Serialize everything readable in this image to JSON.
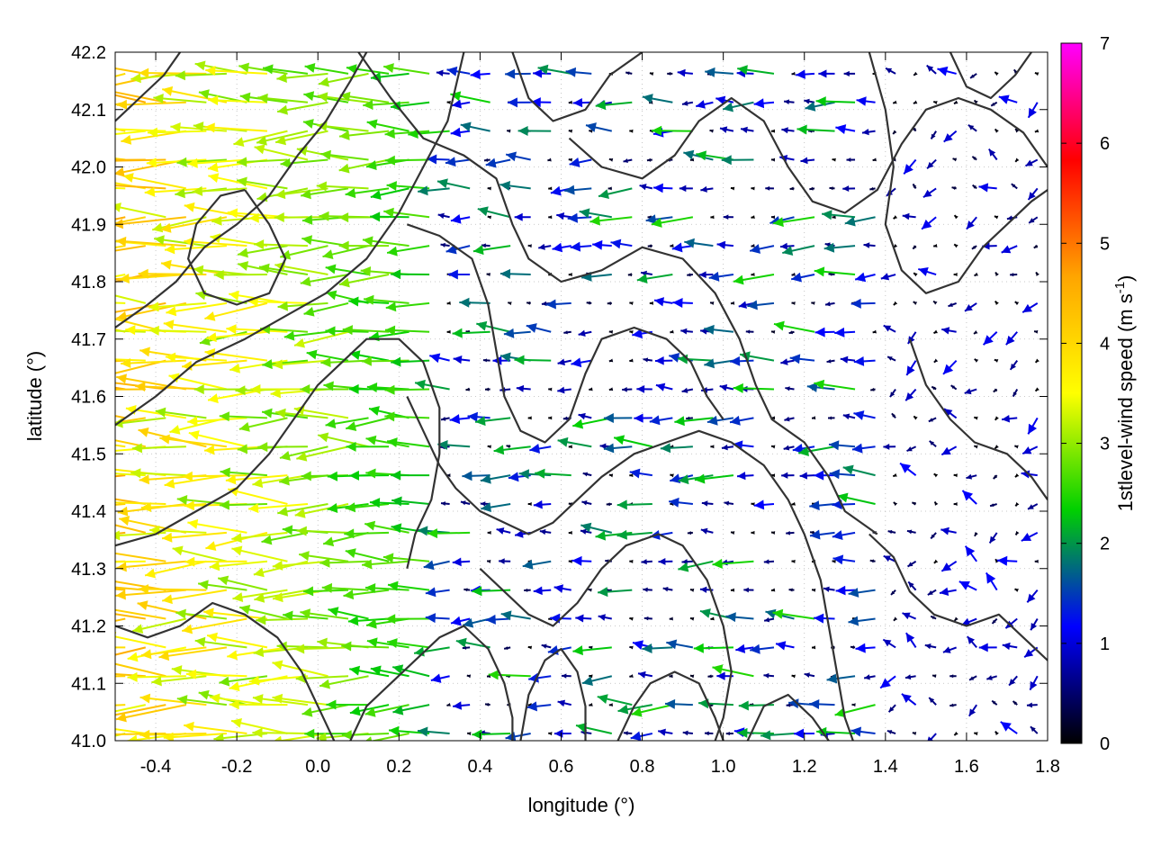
{
  "chart_data": {
    "type": "vector-field",
    "xlabel": "longitude (°)",
    "ylabel": "latitude (°)",
    "xlim": [
      -0.5,
      1.8
    ],
    "ylim": [
      41.0,
      42.2
    ],
    "xticks": [
      "-0.4",
      "-0.2",
      "0.0",
      "0.2",
      "0.4",
      "0.6",
      "0.8",
      "1.0",
      "1.2",
      "1.4",
      "1.6",
      "1.8"
    ],
    "xtick_values": [
      -0.4,
      -0.2,
      0.0,
      0.2,
      0.4,
      0.6,
      0.8,
      1.0,
      1.2,
      1.4,
      1.6,
      1.8
    ],
    "yticks": [
      "41.0",
      "41.1",
      "41.2",
      "41.3",
      "41.4",
      "41.5",
      "41.6",
      "41.7",
      "41.8",
      "41.9",
      "42.0",
      "42.1",
      "42.2"
    ],
    "ytick_values": [
      41.0,
      41.1,
      41.2,
      41.3,
      41.4,
      41.5,
      41.6,
      41.7,
      41.8,
      41.9,
      42.0,
      42.1,
      42.2
    ],
    "grid": true,
    "colorbar": {
      "label_main": "1stlevel-wind speed (m s",
      "label_sup": "-1",
      "label_end": ")",
      "range": [
        0,
        7
      ],
      "ticks": [
        "0",
        "1",
        "2",
        "3",
        "4",
        "5",
        "6",
        "7"
      ],
      "tick_values": [
        0,
        1,
        2,
        3,
        4,
        5,
        6,
        7
      ],
      "palette": [
        "#000000",
        "#0000ff",
        "#00d000",
        "#ffff00",
        "#ffa500",
        "#ff0000",
        "#ff00ff"
      ]
    },
    "contour_color": "#333333",
    "grid_spacing_deg": {
      "lon": 0.05,
      "lat": 0.025
    },
    "wind_regions": [
      {
        "region": "west",
        "lon_range": [
          -0.5,
          0.3
        ],
        "lat_range": [
          41.0,
          42.2
        ],
        "direction": "westward",
        "speed_range": [
          1.5,
          4.8
        ]
      },
      {
        "region": "central",
        "lon_range": [
          0.3,
          1.4
        ],
        "lat_range": [
          41.0,
          42.2
        ],
        "direction": "westward",
        "speed_range": [
          0.0,
          2.5
        ]
      },
      {
        "region": "east",
        "lon_range": [
          1.4,
          1.8
        ],
        "lat_range": [
          41.0,
          42.2
        ],
        "direction": "variable",
        "speed_range": [
          0.0,
          1.2
        ]
      }
    ],
    "contours": [
      [
        [
          -0.5,
          41.72
        ],
        [
          -0.42,
          41.76
        ],
        [
          -0.35,
          41.8
        ],
        [
          -0.28,
          41.86
        ],
        [
          -0.2,
          41.9
        ],
        [
          -0.12,
          41.95
        ],
        [
          -0.05,
          42.02
        ],
        [
          0.02,
          42.08
        ],
        [
          0.08,
          42.15
        ],
        [
          0.12,
          42.2
        ]
      ],
      [
        [
          -0.5,
          41.55
        ],
        [
          -0.4,
          41.6
        ],
        [
          -0.3,
          41.66
        ],
        [
          -0.18,
          41.7
        ],
        [
          -0.08,
          41.74
        ],
        [
          0.02,
          41.78
        ],
        [
          0.12,
          41.84
        ],
        [
          0.2,
          41.92
        ],
        [
          0.26,
          42.0
        ],
        [
          0.32,
          42.08
        ],
        [
          0.36,
          42.2
        ]
      ],
      [
        [
          0.1,
          42.2
        ],
        [
          0.18,
          42.12
        ],
        [
          0.26,
          42.05
        ],
        [
          0.36,
          42.02
        ],
        [
          0.44,
          41.98
        ],
        [
          0.48,
          41.9
        ],
        [
          0.52,
          41.84
        ],
        [
          0.6,
          41.8
        ],
        [
          0.7,
          41.82
        ],
        [
          0.8,
          41.86
        ],
        [
          0.9,
          41.84
        ],
        [
          0.98,
          41.78
        ],
        [
          1.04,
          41.7
        ],
        [
          1.08,
          41.62
        ],
        [
          1.12,
          41.56
        ],
        [
          1.2,
          41.52
        ],
        [
          1.26,
          41.46
        ],
        [
          1.3,
          41.4
        ],
        [
          1.38,
          41.36
        ]
      ],
      [
        [
          0.48,
          42.2
        ],
        [
          0.52,
          42.12
        ],
        [
          0.58,
          42.08
        ],
        [
          0.66,
          42.1
        ],
        [
          0.72,
          42.16
        ],
        [
          0.8,
          42.2
        ]
      ],
      [
        [
          0.62,
          42.05
        ],
        [
          0.7,
          42.0
        ],
        [
          0.8,
          41.98
        ],
        [
          0.88,
          42.02
        ],
        [
          0.94,
          42.08
        ],
        [
          1.02,
          42.12
        ],
        [
          1.1,
          42.08
        ],
        [
          1.16,
          42.0
        ],
        [
          1.22,
          41.94
        ],
        [
          1.3,
          41.92
        ],
        [
          1.38,
          41.96
        ],
        [
          1.44,
          42.04
        ],
        [
          1.5,
          42.1
        ],
        [
          1.58,
          42.12
        ],
        [
          1.66,
          42.1
        ],
        [
          1.74,
          42.06
        ],
        [
          1.8,
          42.0
        ]
      ],
      [
        [
          1.36,
          42.2
        ],
        [
          1.4,
          42.1
        ],
        [
          1.42,
          42.0
        ],
        [
          1.4,
          41.9
        ],
        [
          1.44,
          41.82
        ],
        [
          1.5,
          41.78
        ],
        [
          1.58,
          41.8
        ],
        [
          1.64,
          41.86
        ],
        [
          1.7,
          41.9
        ],
        [
          1.76,
          41.94
        ],
        [
          1.8,
          41.96
        ]
      ],
      [
        [
          -0.5,
          41.34
        ],
        [
          -0.4,
          41.36
        ],
        [
          -0.3,
          41.4
        ],
        [
          -0.2,
          41.44
        ],
        [
          -0.12,
          41.5
        ],
        [
          -0.06,
          41.56
        ],
        [
          0.0,
          41.62
        ],
        [
          0.06,
          41.66
        ],
        [
          0.12,
          41.7
        ],
        [
          0.2,
          41.7
        ],
        [
          0.26,
          41.66
        ],
        [
          0.3,
          41.58
        ],
        [
          0.3,
          41.5
        ],
        [
          0.28,
          41.42
        ],
        [
          0.24,
          41.36
        ],
        [
          0.22,
          41.3
        ]
      ],
      [
        [
          0.22,
          41.6
        ],
        [
          0.26,
          41.54
        ],
        [
          0.3,
          41.48
        ],
        [
          0.34,
          41.44
        ],
        [
          0.4,
          41.4
        ],
        [
          0.46,
          41.38
        ],
        [
          0.52,
          41.36
        ],
        [
          0.58,
          41.38
        ],
        [
          0.64,
          41.42
        ],
        [
          0.7,
          41.46
        ],
        [
          0.78,
          41.5
        ],
        [
          0.86,
          41.52
        ],
        [
          0.94,
          41.54
        ],
        [
          1.02,
          41.52
        ],
        [
          1.1,
          41.48
        ],
        [
          1.16,
          41.42
        ],
        [
          1.2,
          41.36
        ],
        [
          1.24,
          41.28
        ],
        [
          1.26,
          41.2
        ],
        [
          1.28,
          41.12
        ],
        [
          1.3,
          41.04
        ],
        [
          1.32,
          41.0
        ]
      ],
      [
        [
          0.4,
          41.3
        ],
        [
          0.46,
          41.26
        ],
        [
          0.52,
          41.22
        ],
        [
          0.58,
          41.2
        ],
        [
          0.64,
          41.24
        ],
        [
          0.7,
          41.3
        ],
        [
          0.76,
          41.34
        ],
        [
          0.84,
          41.36
        ],
        [
          0.9,
          41.34
        ],
        [
          0.96,
          41.28
        ],
        [
          1.0,
          41.2
        ],
        [
          1.02,
          41.12
        ],
        [
          1.0,
          41.04
        ],
        [
          0.98,
          41.0
        ]
      ],
      [
        [
          0.5,
          41.0
        ],
        [
          0.52,
          41.08
        ],
        [
          0.56,
          41.14
        ],
        [
          0.6,
          41.16
        ],
        [
          0.64,
          41.12
        ],
        [
          0.66,
          41.06
        ],
        [
          0.66,
          41.0
        ]
      ],
      [
        [
          0.74,
          41.0
        ],
        [
          0.78,
          41.06
        ],
        [
          0.82,
          41.1
        ],
        [
          0.88,
          41.12
        ],
        [
          0.94,
          41.1
        ],
        [
          0.98,
          41.04
        ],
        [
          1.0,
          41.0
        ]
      ],
      [
        [
          -0.5,
          41.2
        ],
        [
          -0.42,
          41.18
        ],
        [
          -0.34,
          41.2
        ],
        [
          -0.26,
          41.24
        ],
        [
          -0.18,
          41.22
        ],
        [
          -0.1,
          41.18
        ],
        [
          -0.04,
          41.12
        ],
        [
          0.0,
          41.06
        ],
        [
          0.04,
          41.0
        ]
      ],
      [
        [
          0.08,
          41.0
        ],
        [
          0.12,
          41.06
        ],
        [
          0.18,
          41.1
        ],
        [
          0.24,
          41.14
        ],
        [
          0.3,
          41.18
        ],
        [
          0.36,
          41.2
        ],
        [
          0.42,
          41.16
        ],
        [
          0.46,
          41.1
        ],
        [
          0.48,
          41.04
        ],
        [
          0.48,
          41.0
        ]
      ],
      [
        [
          1.36,
          41.36
        ],
        [
          1.42,
          41.32
        ],
        [
          1.46,
          41.26
        ],
        [
          1.52,
          41.22
        ],
        [
          1.6,
          41.2
        ],
        [
          1.68,
          41.22
        ],
        [
          1.74,
          41.18
        ],
        [
          1.8,
          41.14
        ]
      ],
      [
        [
          1.46,
          41.7
        ],
        [
          1.5,
          41.62
        ],
        [
          1.56,
          41.56
        ],
        [
          1.62,
          41.52
        ],
        [
          1.7,
          41.5
        ],
        [
          1.76,
          41.46
        ],
        [
          1.8,
          41.42
        ]
      ],
      [
        [
          1.06,
          41.0
        ],
        [
          1.1,
          41.06
        ],
        [
          1.16,
          41.08
        ],
        [
          1.22,
          41.04
        ],
        [
          1.26,
          41.0
        ]
      ],
      [
        [
          0.22,
          41.9
        ],
        [
          0.3,
          41.88
        ],
        [
          0.38,
          41.84
        ],
        [
          0.42,
          41.76
        ],
        [
          0.44,
          41.68
        ],
        [
          0.46,
          41.6
        ],
        [
          0.5,
          41.54
        ],
        [
          0.56,
          41.52
        ],
        [
          0.62,
          41.56
        ],
        [
          0.66,
          41.64
        ],
        [
          0.7,
          41.7
        ],
        [
          0.78,
          41.72
        ],
        [
          0.86,
          41.7
        ],
        [
          0.92,
          41.66
        ],
        [
          0.96,
          41.6
        ],
        [
          1.0,
          41.56
        ]
      ],
      [
        [
          -0.18,
          41.96
        ],
        [
          -0.12,
          41.9
        ],
        [
          -0.08,
          41.84
        ],
        [
          -0.12,
          41.78
        ],
        [
          -0.2,
          41.76
        ],
        [
          -0.28,
          41.78
        ],
        [
          -0.32,
          41.84
        ],
        [
          -0.3,
          41.9
        ],
        [
          -0.24,
          41.95
        ],
        [
          -0.18,
          41.96
        ]
      ],
      [
        [
          -0.5,
          42.08
        ],
        [
          -0.44,
          42.12
        ],
        [
          -0.38,
          42.16
        ],
        [
          -0.34,
          42.2
        ]
      ],
      [
        [
          1.56,
          42.2
        ],
        [
          1.6,
          42.14
        ],
        [
          1.66,
          42.12
        ],
        [
          1.72,
          42.16
        ],
        [
          1.76,
          42.2
        ]
      ]
    ]
  }
}
